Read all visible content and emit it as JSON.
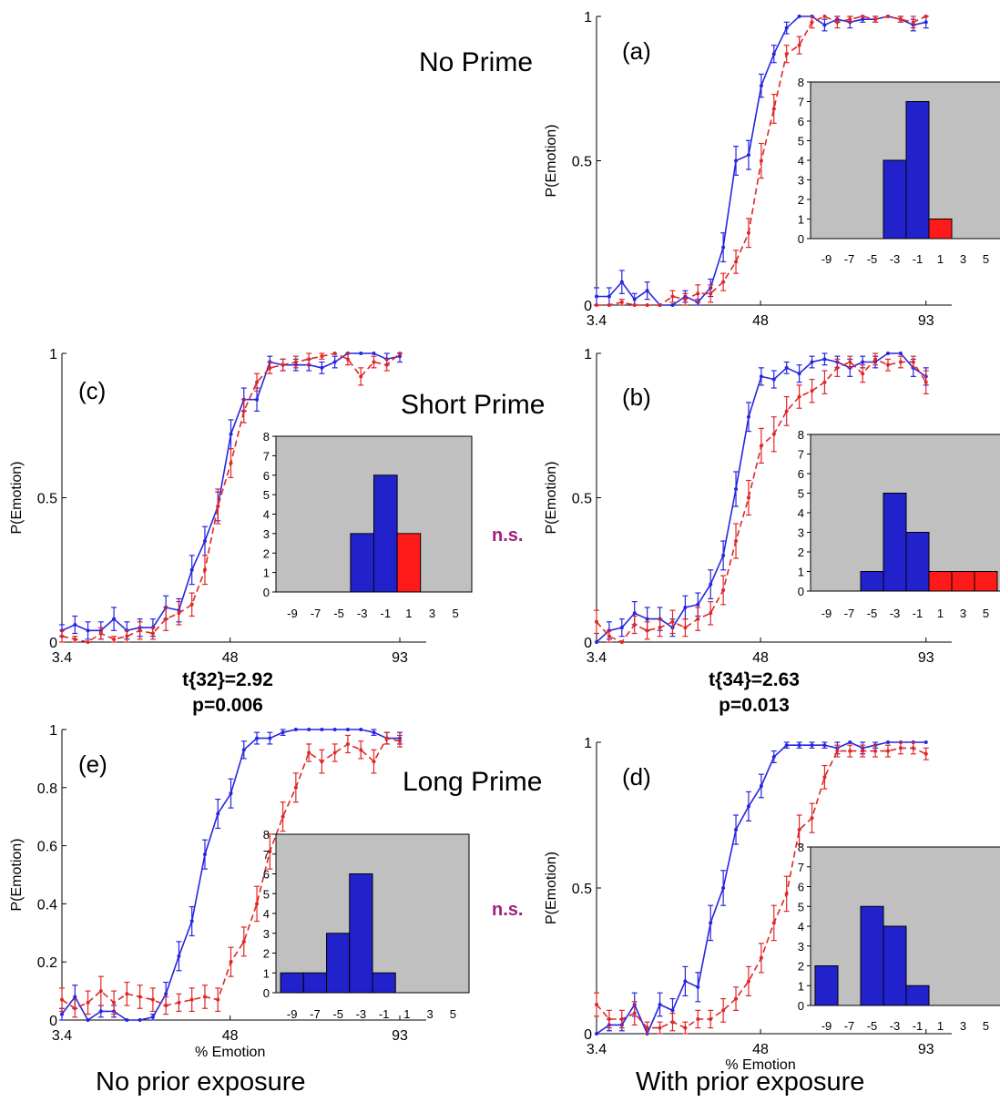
{
  "row_labels": {
    "no_prime": "No Prime",
    "short_prime": "Short Prime",
    "long_prime": "Long Prime"
  },
  "column_labels": {
    "left": "No prior exposure",
    "right": "With prior exposure"
  },
  "stats": {
    "c": {
      "t": "t{32}=2.92",
      "p": "p=0.006"
    },
    "b": {
      "t": "t{34}=2.63",
      "p": "p=0.013"
    }
  },
  "ns_labels": {
    "short": "n.s.",
    "long": "n.s."
  },
  "colors": {
    "blue_series": "#2626e0",
    "red_series": "#e02626",
    "inset_background": "#c0c0c0",
    "blue_bar": "#2222cc",
    "red_bar": "#ff1a1a",
    "ns_text": "#a0207a"
  },
  "chart_data": [
    {
      "panel": "(a)",
      "type": "line",
      "xlabel": "",
      "ylabel": "P(Emotion)",
      "xticks": [
        "3.4",
        "48",
        "93"
      ],
      "xtick_values": [
        3.4,
        48,
        93
      ],
      "ylim": [
        0,
        1
      ],
      "yticks": [
        "0",
        "0.5",
        "1"
      ],
      "ytick_values": [
        0,
        0.5,
        1
      ],
      "series": [
        {
          "color": "blue",
          "style": "solid",
          "y": [
            0.03,
            0.03,
            0.08,
            0.02,
            0.05,
            0,
            0,
            0.03,
            0.01,
            0.06,
            0.2,
            0.5,
            0.52,
            0.76,
            0.87,
            0.96,
            1.0,
            1.0,
            0.97,
            0.99,
            0.98,
            0.99,
            0.99,
            1.0,
            0.99,
            0.97,
            0.98
          ],
          "err": [
            0.03,
            0.03,
            0.04,
            0.02,
            0.03,
            0,
            0,
            0.02,
            0.01,
            0.03,
            0.05,
            0.05,
            0.05,
            0.04,
            0.03,
            0.02,
            0,
            0,
            0.02,
            0.01,
            0.02,
            0.01,
            0.01,
            0,
            0.01,
            0.02,
            0.02
          ]
        },
        {
          "color": "red",
          "style": "dashed",
          "y": [
            0,
            0,
            0.01,
            0,
            0,
            0,
            0.03,
            0.02,
            0.04,
            0.04,
            0.08,
            0.15,
            0.25,
            0.5,
            0.68,
            0.87,
            0.9,
            0.98,
            1.0,
            0.98,
            0.99,
            1.0,
            0.99,
            1.0,
            0.99,
            0.98,
            1.0
          ],
          "err": [
            0,
            0,
            0.01,
            0,
            0,
            0,
            0.02,
            0.02,
            0.03,
            0.03,
            0.03,
            0.04,
            0.05,
            0.06,
            0.05,
            0.03,
            0.03,
            0.02,
            0,
            0.02,
            0.01,
            0,
            0.01,
            0,
            0.01,
            0.02,
            0
          ]
        }
      ],
      "inset": {
        "type": "bar",
        "categories": [
          "-9",
          "-7",
          "-5",
          "-3",
          "-1",
          "1",
          "3",
          "5"
        ],
        "values": [
          0,
          0,
          0,
          4,
          7,
          1,
          0,
          0
        ],
        "ylim": [
          0,
          8
        ]
      }
    },
    {
      "panel": "(c)",
      "type": "line",
      "xlabel": "",
      "ylabel": "P(Emotion)",
      "xticks": [
        "3.4",
        "48",
        "93"
      ],
      "xtick_values": [
        3.4,
        48,
        93
      ],
      "ylim": [
        0,
        1
      ],
      "yticks": [
        "0",
        "0.5",
        "1"
      ],
      "ytick_values": [
        0,
        0.5,
        1
      ],
      "series": [
        {
          "color": "blue",
          "style": "solid",
          "y": [
            0.04,
            0.06,
            0.04,
            0.04,
            0.08,
            0.04,
            0.05,
            0.05,
            0.12,
            0.11,
            0.25,
            0.35,
            0.47,
            0.72,
            0.84,
            0.84,
            0.97,
            0.96,
            0.96,
            0.96,
            0.95,
            0.97,
            1.0,
            1.0,
            1.0,
            0.98,
            0.99
          ],
          "err": [
            0.02,
            0.03,
            0.03,
            0.03,
            0.04,
            0.03,
            0.03,
            0.03,
            0.04,
            0.04,
            0.05,
            0.05,
            0.05,
            0.05,
            0.04,
            0.04,
            0.02,
            0.02,
            0.02,
            0.02,
            0.02,
            0.02,
            0,
            0,
            0,
            0.02,
            0.02
          ]
        },
        {
          "color": "red",
          "style": "dashed",
          "y": [
            0.02,
            0.01,
            0,
            0.03,
            0.01,
            0.02,
            0.04,
            0.03,
            0.08,
            0.1,
            0.13,
            0.25,
            0.47,
            0.62,
            0.8,
            0.9,
            0.95,
            0.96,
            0.97,
            0.98,
            0.99,
            1.0,
            0.98,
            0.92,
            0.97,
            0.96,
            1.0
          ],
          "err": [
            0.02,
            0.01,
            0,
            0.02,
            0.01,
            0.02,
            0.03,
            0.02,
            0.04,
            0.04,
            0.04,
            0.05,
            0.06,
            0.05,
            0.04,
            0.03,
            0.02,
            0.02,
            0.02,
            0.02,
            0.01,
            0,
            0.02,
            0.03,
            0.02,
            0.02,
            0
          ]
        }
      ],
      "inset": {
        "type": "bar",
        "categories": [
          "-9",
          "-7",
          "-5",
          "-3",
          "-1",
          "1",
          "3",
          "5"
        ],
        "values": [
          0,
          0,
          0,
          3,
          6,
          3,
          0,
          0
        ],
        "ylim": [
          0,
          8
        ]
      }
    },
    {
      "panel": "(b)",
      "type": "line",
      "xlabel": "",
      "ylabel": "P(Emotion)",
      "xticks": [
        "3.4",
        "48",
        "93"
      ],
      "xtick_values": [
        3.4,
        48,
        93
      ],
      "ylim": [
        0,
        1
      ],
      "yticks": [
        "0",
        "0.5",
        "1"
      ],
      "ytick_values": [
        0,
        0.5,
        1
      ],
      "series": [
        {
          "color": "blue",
          "style": "solid",
          "y": [
            0,
            0.04,
            0.05,
            0.1,
            0.08,
            0.08,
            0.05,
            0.12,
            0.13,
            0.2,
            0.3,
            0.53,
            0.78,
            0.92,
            0.91,
            0.95,
            0.93,
            0.97,
            0.98,
            0.97,
            0.95,
            0.97,
            0.97,
            1.0,
            1.0,
            0.95,
            0.92
          ],
          "err": [
            0,
            0.03,
            0.03,
            0.04,
            0.04,
            0.04,
            0.03,
            0.04,
            0.04,
            0.05,
            0.05,
            0.06,
            0.05,
            0.03,
            0.03,
            0.02,
            0.03,
            0.02,
            0.02,
            0.02,
            0.03,
            0.02,
            0.02,
            0,
            0,
            0.03,
            0.03
          ]
        },
        {
          "color": "red",
          "style": "dashed",
          "y": [
            0.07,
            0.02,
            0,
            0.06,
            0.04,
            0.05,
            0.07,
            0.05,
            0.08,
            0.1,
            0.18,
            0.35,
            0.5,
            0.68,
            0.72,
            0.8,
            0.85,
            0.87,
            0.9,
            0.95,
            0.97,
            0.93,
            0.98,
            0.96,
            0.97,
            0.97,
            0.9
          ],
          "err": [
            0.04,
            0.02,
            0,
            0.03,
            0.03,
            0.03,
            0.04,
            0.03,
            0.04,
            0.04,
            0.05,
            0.06,
            0.06,
            0.06,
            0.06,
            0.05,
            0.04,
            0.04,
            0.04,
            0.03,
            0.02,
            0.03,
            0.02,
            0.02,
            0.02,
            0.02,
            0.04
          ]
        }
      ],
      "inset": {
        "type": "bar",
        "categories": [
          "-9",
          "-7",
          "-5",
          "-3",
          "-1",
          "1",
          "3",
          "5"
        ],
        "values": [
          0,
          0,
          1,
          5,
          3,
          1,
          1,
          1
        ],
        "ylim": [
          0,
          8
        ]
      }
    },
    {
      "panel": "(e)",
      "type": "line",
      "xlabel": "% Emotion",
      "ylabel": "P(Emotion)",
      "xticks": [
        "3.4",
        "48",
        "93"
      ],
      "xtick_values": [
        3.4,
        48,
        93
      ],
      "ylim": [
        0,
        1
      ],
      "yticks": [
        "0",
        "0.2",
        "0.4",
        "0.6",
        "0.8",
        "1"
      ],
      "ytick_values": [
        0,
        0.2,
        0.4,
        0.6,
        0.8,
        1
      ],
      "series": [
        {
          "color": "blue",
          "style": "solid",
          "y": [
            0.02,
            0.08,
            0,
            0.03,
            0.03,
            0,
            0,
            0.01,
            0.09,
            0.22,
            0.34,
            0.57,
            0.71,
            0.78,
            0.93,
            0.97,
            0.97,
            0.99,
            1.0,
            1.0,
            1.0,
            1.0,
            1.0,
            1.0,
            0.99,
            0.97,
            0.97
          ],
          "err": [
            0.02,
            0.04,
            0,
            0.02,
            0.02,
            0,
            0,
            0.01,
            0.04,
            0.05,
            0.05,
            0.05,
            0.05,
            0.05,
            0.03,
            0.02,
            0.02,
            0.01,
            0,
            0,
            0,
            0,
            0,
            0,
            0.01,
            0.02,
            0.02
          ]
        },
        {
          "color": "red",
          "style": "dashed",
          "y": [
            0.07,
            0.04,
            0.06,
            0.1,
            0.06,
            0.09,
            0.08,
            0.07,
            0.05,
            0.06,
            0.07,
            0.08,
            0.07,
            0.2,
            0.27,
            0.4,
            0.58,
            0.7,
            0.8,
            0.92,
            0.89,
            0.92,
            0.95,
            0.93,
            0.89,
            0.97,
            0.96
          ],
          "err": [
            0.04,
            0.03,
            0.04,
            0.05,
            0.04,
            0.04,
            0.04,
            0.04,
            0.03,
            0.03,
            0.04,
            0.04,
            0.04,
            0.05,
            0.05,
            0.06,
            0.06,
            0.05,
            0.05,
            0.03,
            0.04,
            0.03,
            0.03,
            0.03,
            0.04,
            0.02,
            0.02
          ]
        }
      ],
      "inset": {
        "type": "bar",
        "categories": [
          "-9",
          "-7",
          "-5",
          "-3",
          "-1",
          "1",
          "3",
          "5"
        ],
        "values": [
          1,
          1,
          3,
          6,
          1,
          0,
          0,
          0
        ],
        "ylim": [
          0,
          8
        ]
      }
    },
    {
      "panel": "(d)",
      "type": "line",
      "xlabel": "% Emotion",
      "ylabel": "P(Emotion)",
      "xticks": [
        "3.4",
        "48",
        "93"
      ],
      "xtick_values": [
        3.4,
        48,
        93
      ],
      "ylim": [
        0,
        1
      ],
      "yticks": [
        "0",
        "0.5",
        "1"
      ],
      "ytick_values": [
        0,
        0.5,
        1
      ],
      "series": [
        {
          "color": "blue",
          "style": "solid",
          "y": [
            0,
            0.03,
            0.03,
            0.1,
            0,
            0.1,
            0.08,
            0.18,
            0.16,
            0.38,
            0.5,
            0.7,
            0.78,
            0.85,
            0.95,
            0.99,
            0.99,
            0.99,
            0.99,
            0.98,
            1.0,
            0.98,
            0.99,
            1.0,
            1.0,
            1.0,
            1.0
          ],
          "err": [
            0,
            0.02,
            0.02,
            0.04,
            0,
            0.04,
            0.04,
            0.05,
            0.05,
            0.06,
            0.06,
            0.05,
            0.05,
            0.04,
            0.02,
            0.01,
            0.01,
            0.01,
            0.01,
            0.02,
            0,
            0.02,
            0.01,
            0,
            0,
            0,
            0
          ]
        },
        {
          "color": "red",
          "style": "dashed",
          "y": [
            0.1,
            0.05,
            0.05,
            0.07,
            0.02,
            0.02,
            0.04,
            0.02,
            0.05,
            0.05,
            0.08,
            0.12,
            0.18,
            0.26,
            0.38,
            0.48,
            0.7,
            0.74,
            0.88,
            0.97,
            0.97,
            0.97,
            0.97,
            0.97,
            0.98,
            0.98,
            0.96
          ],
          "err": [
            0.04,
            0.03,
            0.03,
            0.04,
            0.02,
            0.02,
            0.03,
            0.02,
            0.03,
            0.03,
            0.04,
            0.04,
            0.05,
            0.05,
            0.06,
            0.06,
            0.05,
            0.05,
            0.04,
            0.02,
            0.02,
            0.02,
            0.02,
            0.02,
            0.02,
            0.02,
            0.02
          ]
        }
      ],
      "inset": {
        "type": "bar",
        "categories": [
          "-9",
          "-7",
          "-5",
          "-3",
          "-1",
          "1",
          "3",
          "5"
        ],
        "values": [
          2,
          0,
          5,
          4,
          1,
          0,
          0,
          0
        ],
        "ylim": [
          0,
          8
        ]
      }
    }
  ]
}
